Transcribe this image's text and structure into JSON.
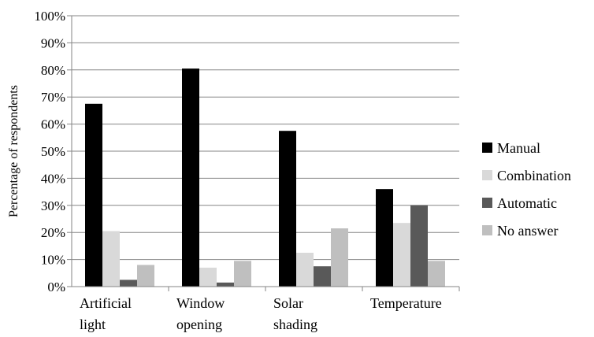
{
  "chart_data": {
    "type": "bar",
    "title": "",
    "xlabel": "",
    "ylabel": "Percentage of respondents",
    "ylim": [
      0,
      100
    ],
    "y_ticks": [
      0,
      10,
      20,
      30,
      40,
      50,
      60,
      70,
      80,
      90,
      100
    ],
    "y_tick_labels": [
      "0%",
      "10%",
      "20%",
      "30%",
      "40%",
      "50%",
      "60%",
      "70%",
      "80%",
      "90%",
      "100%"
    ],
    "grid": true,
    "legend_position": "right",
    "categories": [
      [
        "Artificial",
        "light"
      ],
      [
        "Window",
        "opening"
      ],
      [
        "Solar",
        "shading"
      ],
      [
        "Temperature"
      ]
    ],
    "series": [
      {
        "name": "Manual",
        "color": "#000000",
        "values": [
          67.5,
          80.5,
          57.5,
          36
        ]
      },
      {
        "name": "Combination",
        "color": "#d9d9d9",
        "values": [
          20.5,
          7,
          12.5,
          23.5
        ]
      },
      {
        "name": "Automatic",
        "color": "#595959",
        "values": [
          2.5,
          1.5,
          7.5,
          30
        ]
      },
      {
        "name": "No answer",
        "color": "#bfbfbf",
        "values": [
          8,
          9.5,
          21.5,
          9.5
        ]
      }
    ],
    "colors": {
      "grid": "#868686",
      "axis": "#868686"
    }
  }
}
